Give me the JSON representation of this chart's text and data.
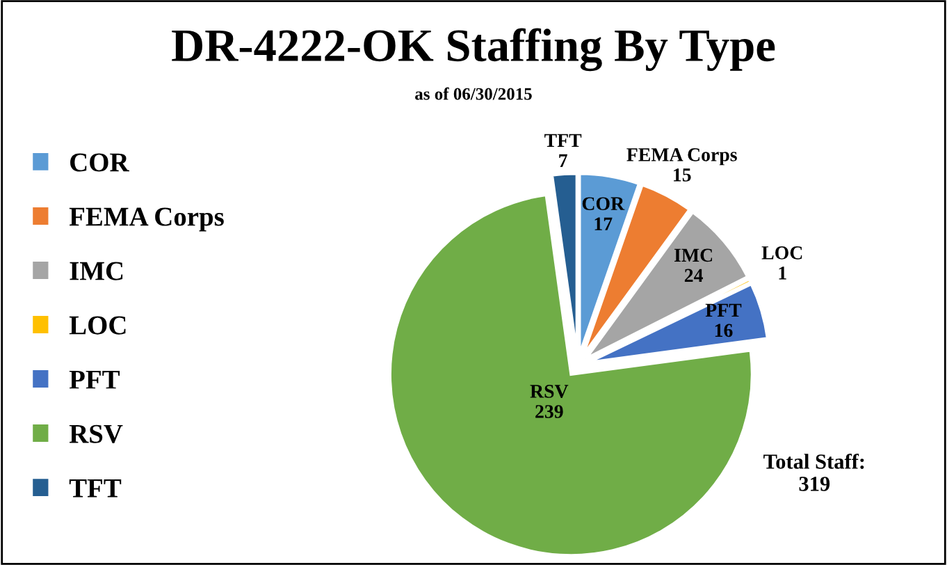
{
  "chart_data": {
    "type": "pie",
    "title": "DR-4222-OK Staffing By Type",
    "subtitle": "as of 06/30/2015",
    "categories": [
      "COR",
      "FEMA Corps",
      "IMC",
      "LOC",
      "PFT",
      "RSV",
      "TFT"
    ],
    "values": [
      17,
      15,
      24,
      1,
      16,
      239,
      7
    ],
    "colors": [
      "#5b9bd5",
      "#ed7d31",
      "#a5a5a5",
      "#ffc000",
      "#4472c4",
      "#70ad47",
      "#255e91"
    ],
    "data_labels": true,
    "legend": "left",
    "annotations": [
      "Total Staff:\n319"
    ]
  }
}
